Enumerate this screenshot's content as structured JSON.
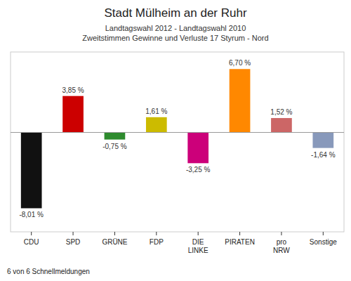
{
  "chart_data": {
    "type": "bar",
    "title": "Stadt Mülheim an der Ruhr",
    "subtitle": [
      "Landtagswahl 2012 - Landtagswahl 2010",
      "Zweitstimmen Gewinne und Verluste 17 Styrum - Nord"
    ],
    "footer": "6 von 6 Schnellmeldungen",
    "categories": [
      "CDU",
      "SPD",
      "GRÜNE",
      "FDP",
      "DIE\nLINKE",
      "PIRATEN",
      "pro\nNRW",
      "Sonstige"
    ],
    "values": [
      -8.01,
      3.85,
      -0.75,
      1.61,
      -3.25,
      6.7,
      1.52,
      -1.64
    ],
    "value_labels": [
      "-8,01 %",
      "3,85 %",
      "-0,75 %",
      "1,61 %",
      "-3,25 %",
      "6,70 %",
      "1,52 %",
      "-1,64 %"
    ],
    "colors": [
      "#111111",
      "#cc0000",
      "#2e8b2e",
      "#ccbb00",
      "#cc007a",
      "#ff8800",
      "#cc6666",
      "#8899bb"
    ],
    "ylim": [
      -10.5,
      8.5
    ],
    "data_labels": true,
    "tick_labels": "x",
    "grid": false
  }
}
